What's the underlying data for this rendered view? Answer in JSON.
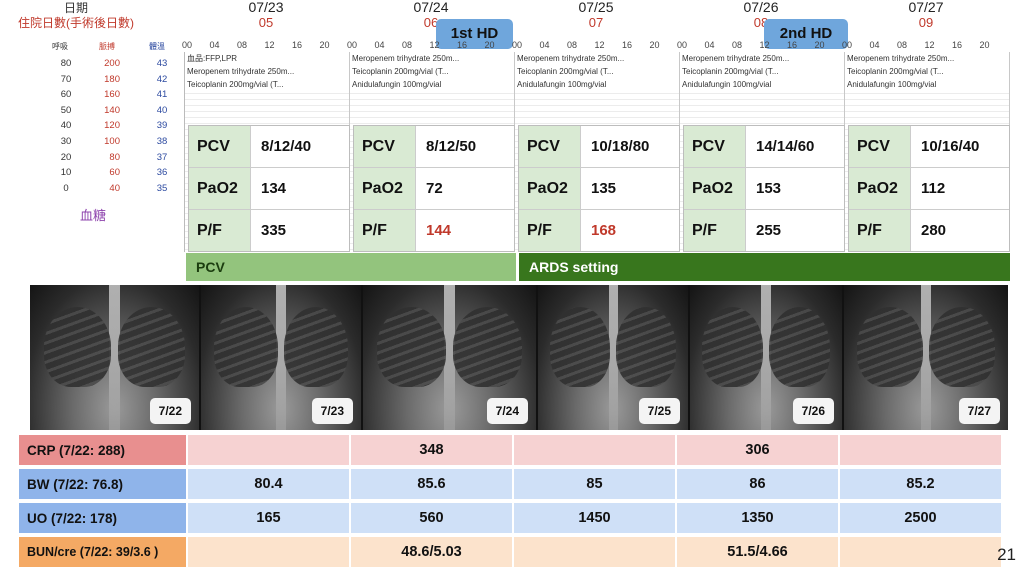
{
  "header": {
    "date_label": "日期",
    "hospital_day_label": "住院日數(手術後日數)",
    "days": [
      {
        "date": "07/23",
        "num": "05"
      },
      {
        "date": "07/24",
        "num": "06"
      },
      {
        "date": "07/25",
        "num": "07"
      },
      {
        "date": "07/26",
        "num": "08"
      },
      {
        "date": "07/27",
        "num": "09"
      }
    ],
    "hd_badges": [
      "1st HD",
      "2nd HD"
    ]
  },
  "legend": {
    "resp_label": "呼吸",
    "pulse_label": "脈搏",
    "temp_label": "體溫",
    "resp": [
      "80",
      "70",
      "60",
      "50",
      "40",
      "30",
      "20",
      "10",
      "0"
    ],
    "pulse": [
      "200",
      "180",
      "160",
      "140",
      "120",
      "100",
      "80",
      "60",
      "40"
    ],
    "temp": [
      "43",
      "42",
      "41",
      "40",
      "39",
      "38",
      "37",
      "36",
      "35"
    ],
    "sugar_label": "血糖"
  },
  "hour_ticks": [
    "00",
    "04",
    "08",
    "12",
    "16",
    "20"
  ],
  "meds": [
    [
      "血品:FFP,LPR",
      "Meropenem trihydrate 250m...",
      "Teicoplanin 200mg/vial (T..."
    ],
    [
      "Meropenem trihydrate 250m...",
      "Teicoplanin 200mg/vial (T...",
      "Anidulafungin 100mg/vial"
    ],
    [
      "Meropenem trihydrate 250m...",
      "Teicoplanin 200mg/vial (T...",
      "Anidulafungin 100mg/vial"
    ],
    [
      "Meropenem trihydrate 250m...",
      "Teicoplanin 200mg/vial (T...",
      "Anidulafungin 100mg/vial"
    ],
    [
      "Meropenem trihydrate 250m...",
      "Teicoplanin 200mg/vial (T...",
      "Anidulafungin 100mg/vial"
    ]
  ],
  "vent": [
    {
      "pcv": "8/12/40",
      "pao2": "134",
      "pf": "335",
      "pf_red": false
    },
    {
      "pcv": "8/12/50",
      "pao2": "72",
      "pf": "144",
      "pf_red": true
    },
    {
      "pcv": "10/18/80",
      "pao2": "135",
      "pf": "168",
      "pf_red": true
    },
    {
      "pcv": "14/14/60",
      "pao2": "153",
      "pf": "255",
      "pf_red": false
    },
    {
      "pcv": "10/16/40",
      "pao2": "112",
      "pf": "280",
      "pf_red": false
    }
  ],
  "vent_labels": {
    "pcv": "PCV",
    "pao2": "PaO2",
    "pf": "P/F"
  },
  "modes": [
    "PCV",
    "ARDS setting"
  ],
  "xrays": [
    "7/22",
    "7/23",
    "7/24",
    "7/25",
    "7/26",
    "7/27"
  ],
  "labs": [
    {
      "label": "CRP (7/22: 288)",
      "values": [
        "",
        "348",
        "",
        "306",
        ""
      ]
    },
    {
      "label": "BW (7/22: 76.8)",
      "values": [
        "80.4",
        "85.6",
        "85",
        "86",
        "85.2"
      ]
    },
    {
      "label": "UO (7/22: 178)",
      "values": [
        "165",
        "560",
        "1450",
        "1350",
        "2500"
      ]
    },
    {
      "label": "BUN/cre (7/22: 39/3.6 )",
      "values": [
        "",
        "48.6/5.03",
        "",
        "51.5/4.66",
        ""
      ]
    }
  ],
  "colors": {
    "crp_head": "#e88f8f",
    "crp_cell": "#f6d2d2",
    "bw_head": "#8fb4ea",
    "bw_cell": "#cfe0f7",
    "uo_head": "#8fb4ea",
    "uo_cell": "#cfe0f7",
    "bun_head": "#f4a964",
    "bun_cell": "#fce3cc",
    "mode_pcv": "#93c47d",
    "mode_ards": "#38761d"
  },
  "page_number": "21"
}
